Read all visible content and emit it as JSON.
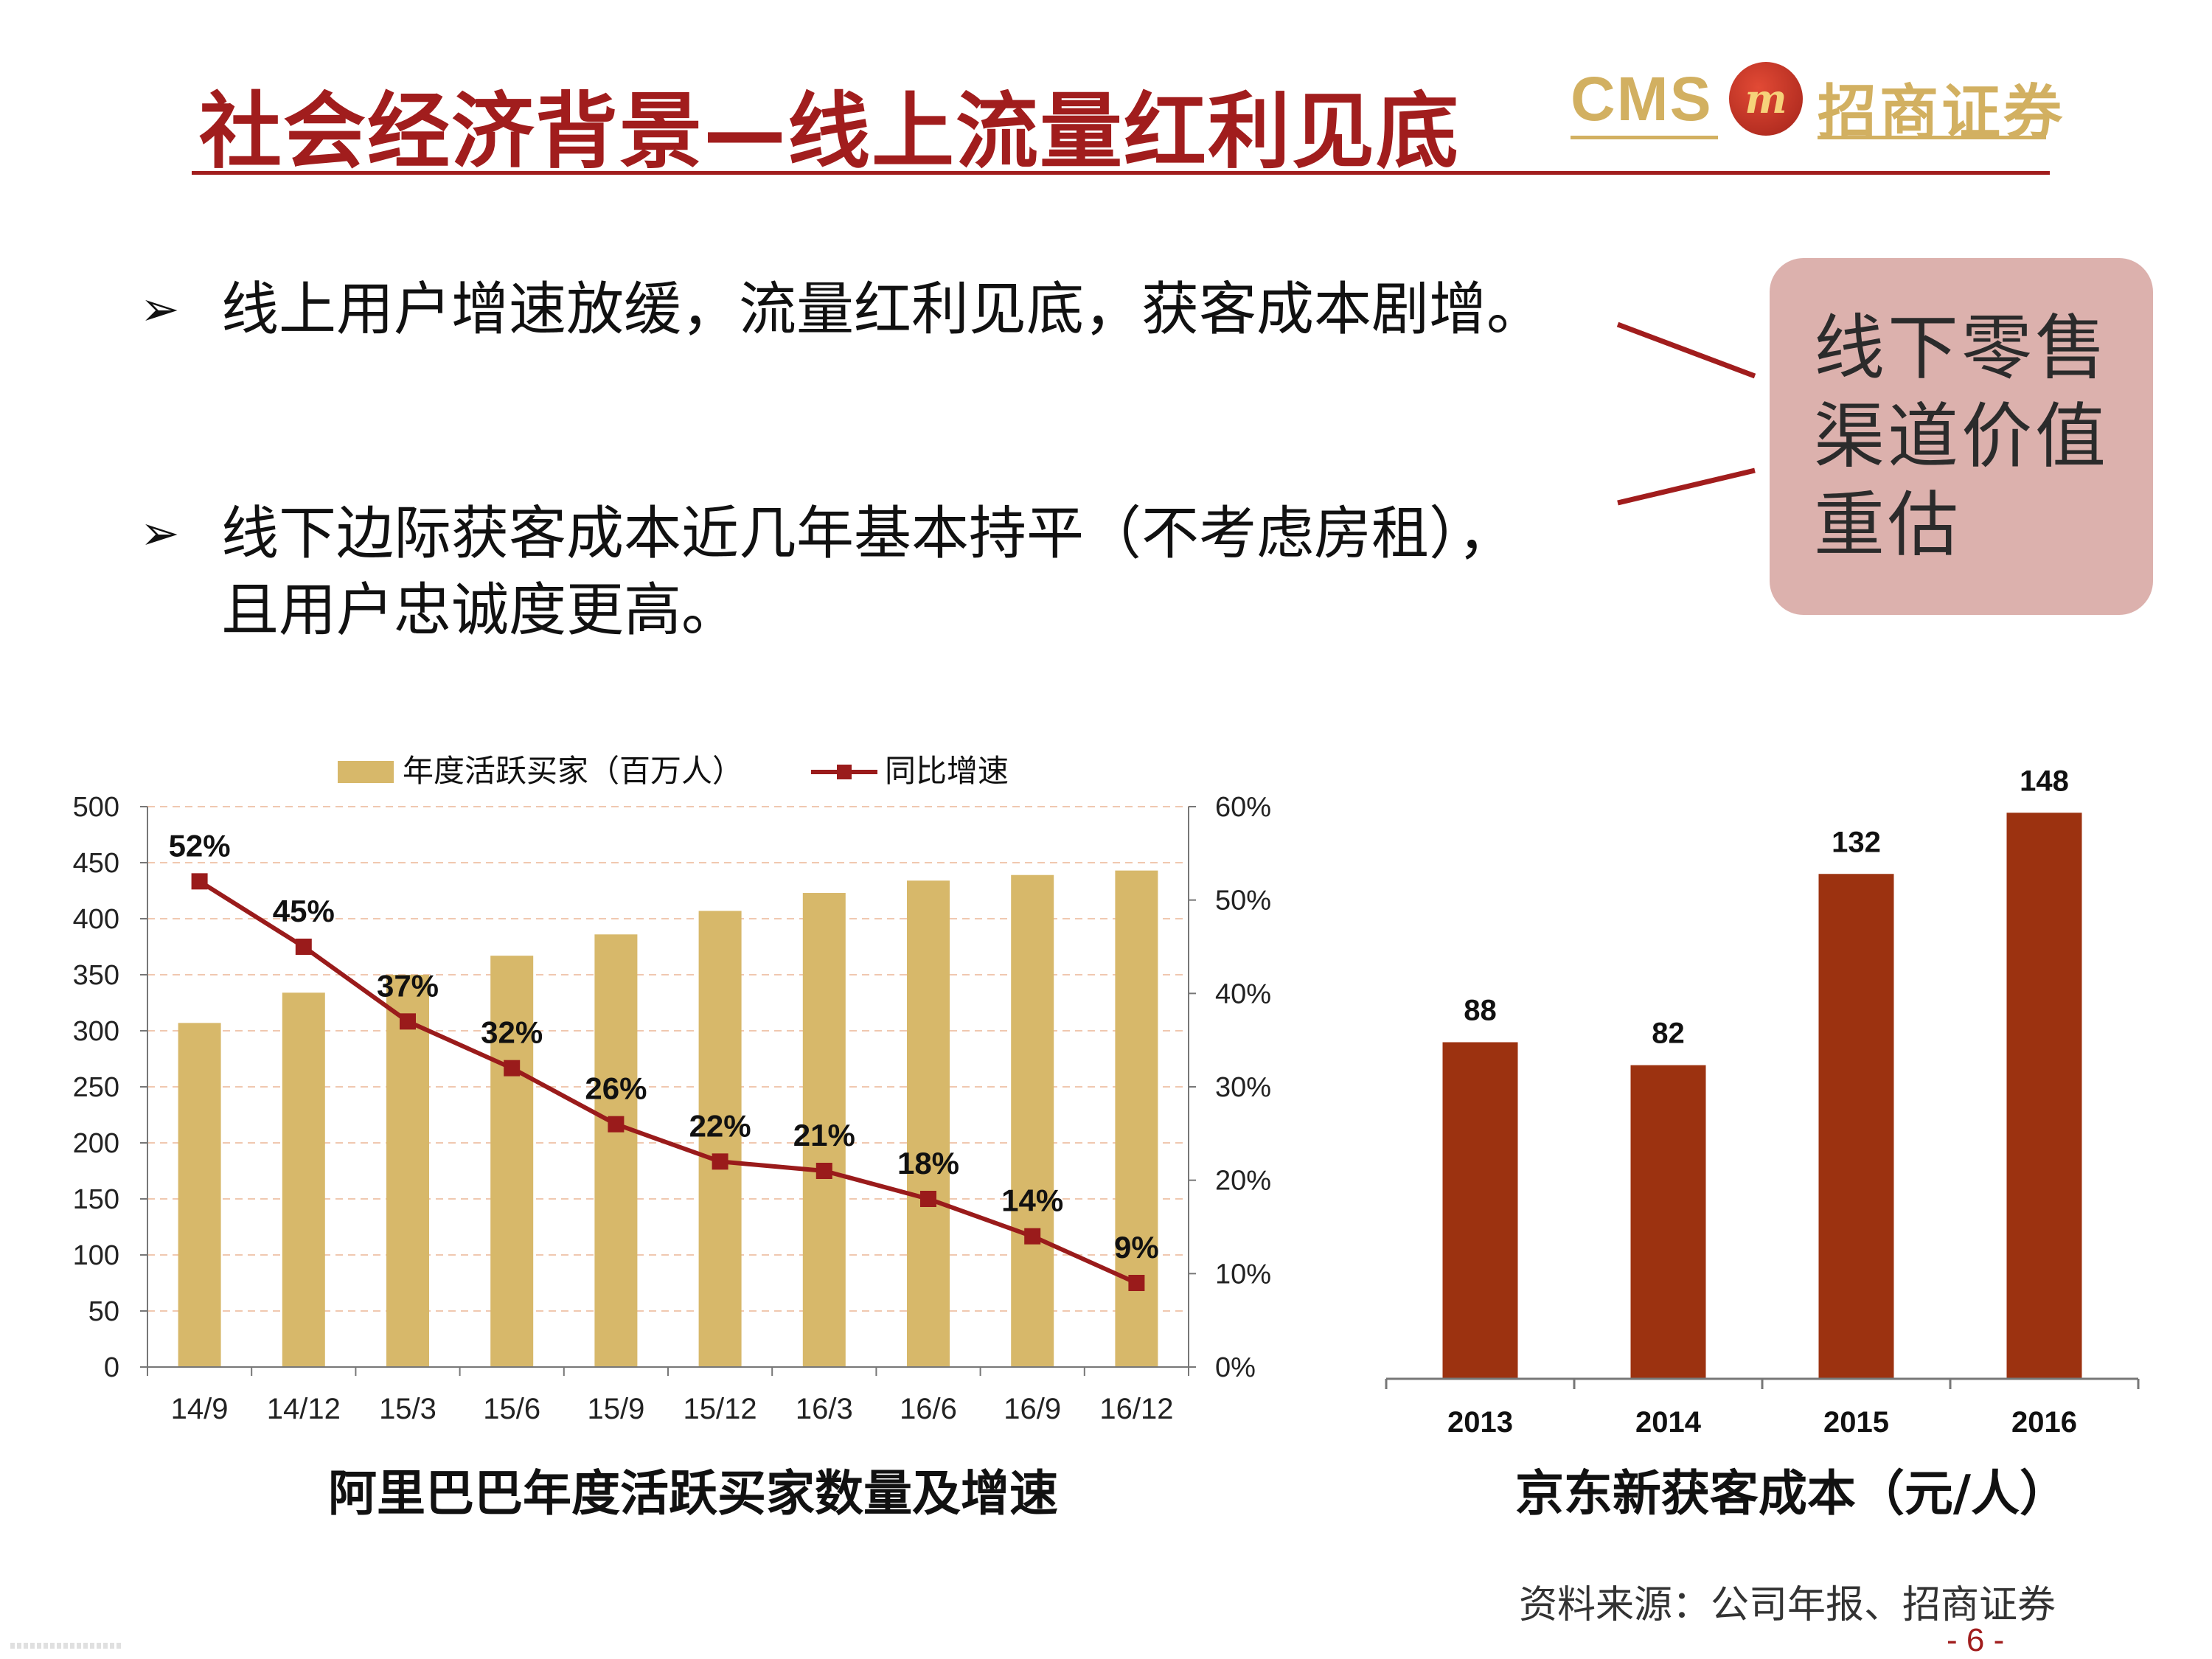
{
  "header": {
    "title": "社会经济背景—线上流量红利见底",
    "logo_latin": "CMS",
    "logo_badge": "m",
    "logo_cn": "招商证券"
  },
  "bullets": [
    {
      "marker": "➢",
      "text": "线上用户增速放缓，流量红利见底，获客成本剧增。"
    },
    {
      "marker": "➢",
      "text": "线下边际获客成本近几年基本持平（不考虑房租），且用户忠诚度更高。"
    }
  ],
  "callout": {
    "text": "线下零售渠道价值重估"
  },
  "captions": {
    "left": "阿里巴巴年度活跃买家数量及增速",
    "right": "京东新获客成本（元/人）"
  },
  "source": "资料来源：公司年报、招商证券",
  "page_number": "- 6 -",
  "colors": {
    "accent": "#a11d1d",
    "bar_gold": "#d7b86a",
    "bar_rust": "#9c3210",
    "line": "#9a1b1b",
    "logo_gold": "#d2b061",
    "callout_bg": "#dcb1ad"
  },
  "chart_data": [
    {
      "type": "bar",
      "categories": [
        "14/9",
        "14/12",
        "15/3",
        "15/6",
        "15/9",
        "15/12",
        "16/3",
        "16/6",
        "16/9",
        "16/12"
      ],
      "series": [
        {
          "name": "年度活跃买家（百万人）",
          "type": "bar",
          "axis": "left",
          "values": [
            307,
            334,
            350,
            367,
            386,
            407,
            423,
            434,
            439,
            443
          ]
        },
        {
          "name": "同比增速",
          "type": "line",
          "axis": "right",
          "values": [
            52,
            45,
            37,
            32,
            26,
            22,
            21,
            18,
            14,
            9
          ],
          "labels": [
            "52%",
            "45%",
            "37%",
            "32%",
            "26%",
            "22%",
            "21%",
            "18%",
            "14%",
            "9%"
          ]
        }
      ],
      "y_left": {
        "range": [
          0,
          500
        ],
        "ticks": [
          "0",
          "50",
          "100",
          "150",
          "200",
          "250",
          "300",
          "350",
          "400",
          "450",
          "500"
        ]
      },
      "y_right": {
        "range": [
          0,
          60
        ],
        "ticks": [
          "0%",
          "10%",
          "20%",
          "30%",
          "40%",
          "50%",
          "60%"
        ]
      },
      "legend_position": "top",
      "grid": true
    },
    {
      "type": "bar",
      "categories": [
        "2013",
        "2014",
        "2015",
        "2016"
      ],
      "values": [
        88,
        82,
        132,
        148
      ],
      "labels": [
        "88",
        "82",
        "132",
        "148"
      ],
      "ylim": [
        0,
        160
      ],
      "grid": false
    }
  ]
}
